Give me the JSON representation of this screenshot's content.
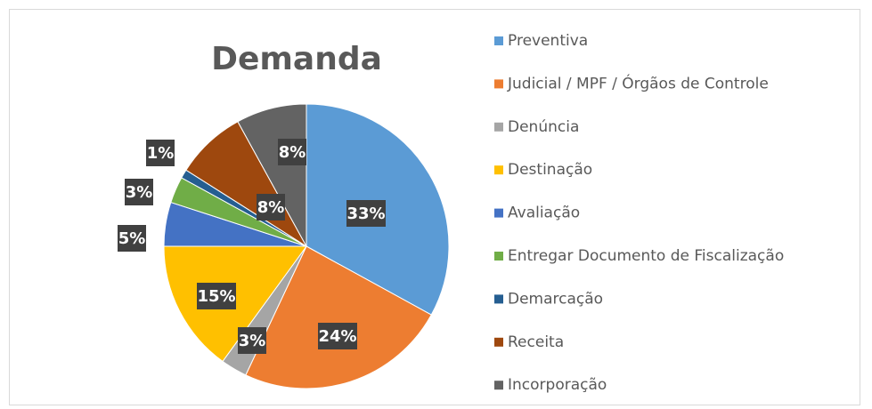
{
  "chart_data": {
    "type": "pie",
    "title": "Demanda",
    "categories": [
      "Preventiva",
      "Judicial / MPF / Órgãos de Controle",
      "Denúncia",
      "Destinação",
      "Avaliação",
      "Entregar Documento de Fiscalização",
      "Demarcação",
      "Receita",
      "Incorporação"
    ],
    "values": [
      33,
      24,
      3,
      15,
      5,
      3,
      1,
      8,
      8
    ],
    "value_labels": [
      "33%",
      "24%",
      "3%",
      "15%",
      "5%",
      "3%",
      "1%",
      "8%",
      "8%"
    ],
    "colors": [
      "#5b9bd5",
      "#ed7d31",
      "#a5a5a5",
      "#ffc000",
      "#4472c4",
      "#70ad47",
      "#255e91",
      "#9e480e",
      "#636363"
    ],
    "legend": "right"
  }
}
